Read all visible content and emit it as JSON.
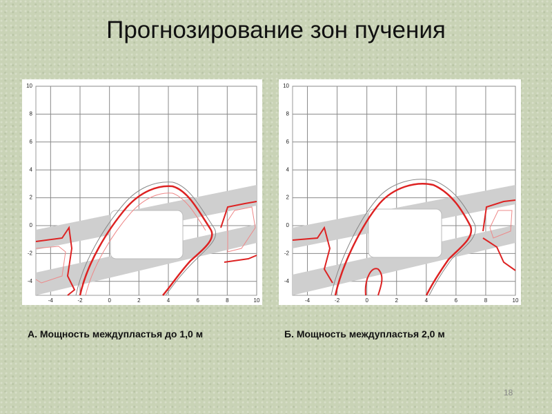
{
  "slide": {
    "title": "Прогнозирование зон пучения",
    "page_number": "18"
  },
  "chart_data": [
    {
      "type": "contour",
      "caption": "А. Мощность междупластья до 1,0 м",
      "xlim": [
        -5,
        10
      ],
      "ylim": [
        -5,
        10
      ],
      "xticks": [
        -4,
        -2,
        0,
        2,
        4,
        6,
        8,
        10
      ],
      "yticks": [
        -4,
        -2,
        0,
        2,
        4,
        6,
        8,
        10
      ],
      "grid": true
    },
    {
      "type": "contour",
      "caption": "Б. Мощность междупластья 2,0 м",
      "xlim": [
        -5,
        10
      ],
      "ylim": [
        -5,
        10
      ],
      "xticks": [
        -4,
        -2,
        0,
        2,
        4,
        6,
        8,
        10
      ],
      "yticks": [
        -4,
        -2,
        0,
        2,
        4,
        6,
        8,
        10
      ],
      "grid": true
    }
  ]
}
